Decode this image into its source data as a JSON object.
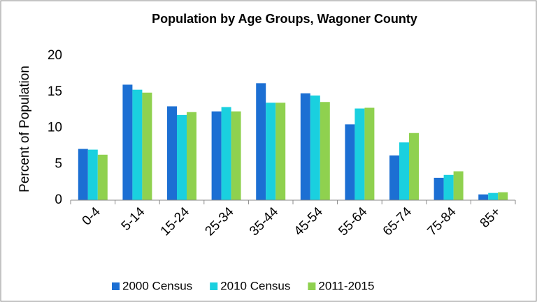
{
  "chart_data": {
    "type": "bar",
    "title": "Population by Age Groups, Wagoner County",
    "y_label": "Percent of Population",
    "categories": [
      "0-4",
      "5-14",
      "15-24",
      "25-34",
      "35-44",
      "45-54",
      "55-64",
      "65-74",
      "75-84",
      "85+"
    ],
    "series": [
      {
        "name": "2000 Census",
        "color": "#1c6fd3",
        "values": [
          7.1,
          16.0,
          13.0,
          12.3,
          16.2,
          14.8,
          10.5,
          6.2,
          3.1,
          0.8
        ]
      },
      {
        "name": "2010 Census",
        "color": "#1ad0df",
        "values": [
          7.0,
          15.3,
          11.8,
          12.9,
          13.5,
          14.5,
          12.7,
          8.0,
          3.5,
          1.0
        ]
      },
      {
        "name": "2011-2015",
        "color": "#8fd14f",
        "values": [
          6.3,
          14.9,
          12.2,
          12.3,
          13.5,
          13.6,
          12.8,
          9.3,
          4.0,
          1.1
        ]
      }
    ],
    "ylim": [
      0,
      20
    ],
    "yticks": [
      0,
      5,
      10,
      15,
      20
    ],
    "grid": false,
    "legend": "bottom"
  }
}
